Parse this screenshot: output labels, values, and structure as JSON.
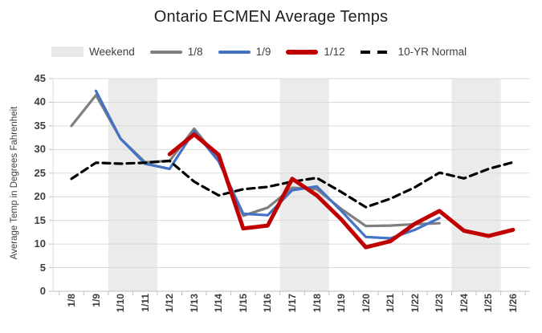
{
  "title": "Ontario ECMEN Average Temps",
  "legend": [
    {
      "id": "weekend",
      "label": "Weekend",
      "swatch": "box",
      "color": "#E8E8E8"
    },
    {
      "id": "run-1-8",
      "label": "1/8",
      "swatch": "line",
      "color": "#7F7F7F"
    },
    {
      "id": "run-1-9",
      "label": "1/9",
      "swatch": "line",
      "color": "#4472C4"
    },
    {
      "id": "run-1-12",
      "label": "1/12",
      "swatch": "thick-line",
      "color": "#C00000"
    },
    {
      "id": "ten-yr-normal",
      "label": "10-YR Normal",
      "swatch": "dash",
      "color": "#000000"
    }
  ],
  "chart_data": {
    "type": "line",
    "title": "Ontario ECMEN Average Temps",
    "xlabel": "",
    "ylabel": "Average Temp in Degrees Fahrenheit",
    "ylim": [
      0,
      45
    ],
    "yticks": [
      0,
      5,
      10,
      15,
      20,
      25,
      30,
      35,
      40,
      45
    ],
    "grid": "horizontal",
    "legend_position": "top",
    "categories": [
      "1/8",
      "1/9",
      "1/10",
      "1/11",
      "1/12",
      "1/13",
      "1/14",
      "1/15",
      "1/16",
      "1/17",
      "1/18",
      "1/19",
      "1/20",
      "1/21",
      "1/22",
      "1/23",
      "1/24",
      "1/25",
      "1/26"
    ],
    "weekend_bands": [
      [
        "1/10",
        "1/11"
      ],
      [
        "1/17",
        "1/18"
      ],
      [
        "1/24",
        "1/25"
      ]
    ],
    "series": [
      {
        "name": "1/8",
        "color": "#7F7F7F",
        "style": "solid",
        "width": 3.2,
        "start": "1/8",
        "values": [
          35,
          41.5,
          32.3,
          27.3,
          27.6,
          34.4,
          28,
          16,
          17.7,
          21.9,
          21.6,
          17.4,
          13.8,
          13.9,
          14.2,
          14.4
        ]
      },
      {
        "name": "1/9",
        "color": "#4472C4",
        "style": "solid",
        "width": 3.2,
        "start": "1/9",
        "values": [
          42.4,
          32.3,
          27,
          25.9,
          33.9,
          27.5,
          16.4,
          16.1,
          21.4,
          22.2,
          17,
          11.5,
          11.2,
          13,
          15.5
        ]
      },
      {
        "name": "10-YR Normal",
        "color": "#000000",
        "style": "dashed",
        "width": 3.2,
        "start": "1/8",
        "values": [
          23.8,
          27.2,
          27,
          27.2,
          27.6,
          23.2,
          20.3,
          21.6,
          22.1,
          23.2,
          24,
          21,
          17.8,
          19.6,
          22,
          25.1,
          23.9,
          25.9,
          27.3
        ]
      },
      {
        "name": "1/12",
        "color": "#C00000",
        "style": "solid",
        "width": 5,
        "start": "1/12",
        "values": [
          29,
          33.2,
          28.9,
          13.3,
          13.9,
          23.8,
          20.3,
          15.2,
          9.3,
          10.6,
          14.3,
          17,
          12.8,
          11.7,
          13
        ]
      }
    ]
  },
  "colors": {
    "background": "#FFFFFF",
    "band": "#EBEBEB",
    "grid": "#D9D9D9",
    "axis": "#BFBFBF",
    "tick_text": "#3F3F3F",
    "title_text": "#212121"
  }
}
